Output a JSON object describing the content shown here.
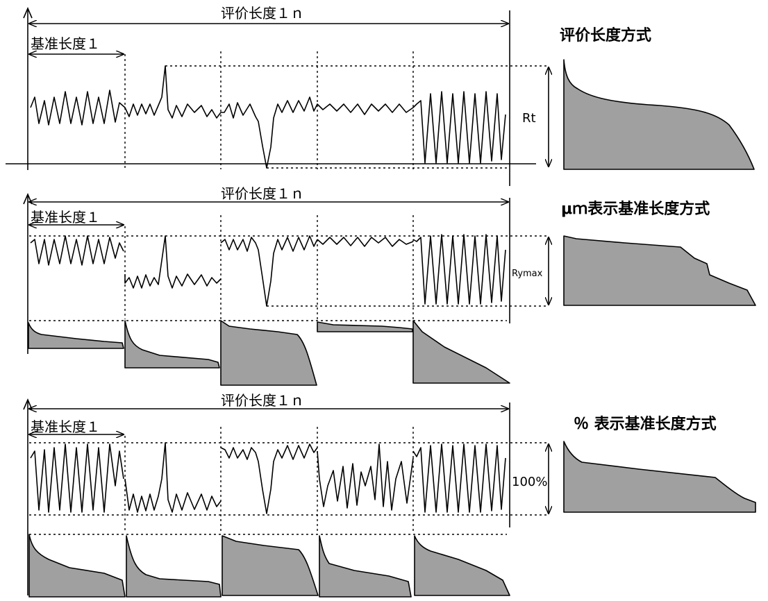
{
  "rows": [
    {
      "title": "评价长度方式",
      "evaluation_length_label": "评价长度１ｎ",
      "sampling_length_label": "基准长度１",
      "height_label": "Rt"
    },
    {
      "title": "μｍ表示基准长度方式",
      "evaluation_length_label": "评价长度１ｎ",
      "sampling_length_label": "基准长度１",
      "height_label": "Rymax"
    },
    {
      "title": "％ 表示基准长度方式",
      "evaluation_length_label": "评价长度１ｎ",
      "sampling_length_label": "基准长度１",
      "height_label": "100%"
    }
  ]
}
